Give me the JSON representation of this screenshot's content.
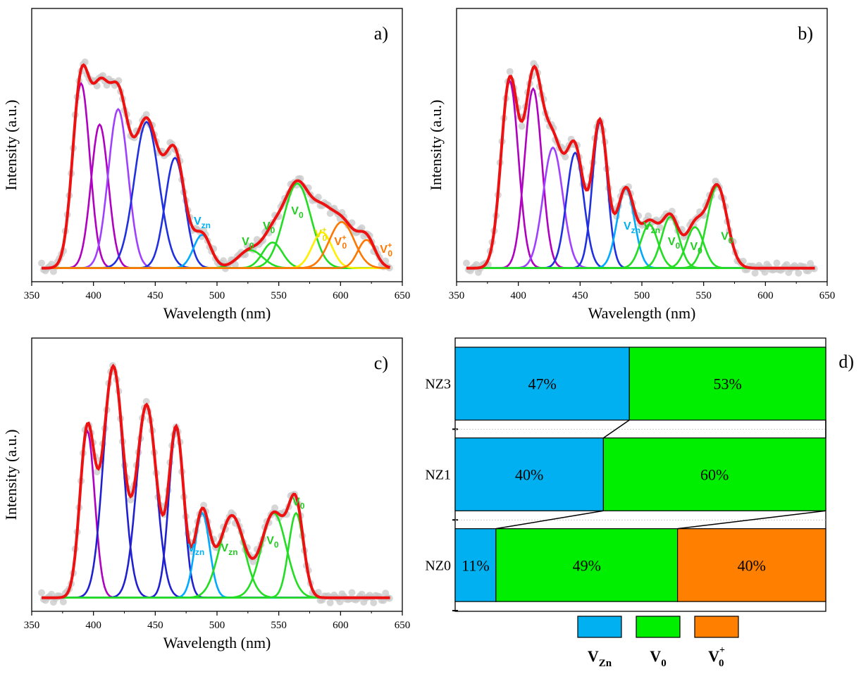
{
  "chart_data": [
    {
      "type": "line",
      "panel": "a)",
      "xlabel": "Wavelength (nm)",
      "ylabel": "Intensity (a.u.)",
      "xlim": [
        350,
        650
      ],
      "xticks": [
        350,
        400,
        450,
        500,
        550,
        600,
        650
      ],
      "ymax": 1.0,
      "baseline": 0.02,
      "components": [
        {
          "center": 390,
          "amp": 0.72,
          "sigma": 7,
          "color": "#b000c0"
        },
        {
          "center": 405,
          "amp": 0.56,
          "sigma": 7,
          "color": "#b000c0"
        },
        {
          "center": 420,
          "amp": 0.62,
          "sigma": 8,
          "color": "#a040ff"
        },
        {
          "center": 443,
          "amp": 0.57,
          "sigma": 10,
          "color": "#2030e0"
        },
        {
          "center": 466,
          "amp": 0.43,
          "sigma": 8,
          "color": "#2030e0"
        },
        {
          "center": 488,
          "amp": 0.13,
          "sigma": 7,
          "color": "#00aaff"
        },
        {
          "center": 527,
          "amp": 0.07,
          "sigma": 10,
          "color": "#22dd22"
        },
        {
          "center": 545,
          "amp": 0.1,
          "sigma": 8,
          "color": "#22dd22"
        },
        {
          "center": 565,
          "amp": 0.33,
          "sigma": 11,
          "color": "#22dd22"
        },
        {
          "center": 585,
          "amp": 0.14,
          "sigma": 8,
          "color": "#ffee00"
        },
        {
          "center": 601,
          "amp": 0.18,
          "sigma": 10,
          "color": "#ff7700"
        },
        {
          "center": 621,
          "amp": 0.11,
          "sigma": 7,
          "color": "#ff7700"
        }
      ],
      "annotations": [
        {
          "text": "V",
          "sub": "zn",
          "sup": "",
          "x": 488,
          "y": 0.19,
          "color": "#00b0f0"
        },
        {
          "text": "V",
          "sub": "0",
          "sup": "",
          "x": 525,
          "y": 0.11,
          "color": "#22cc22"
        },
        {
          "text": "V",
          "sub": "0",
          "sup": "",
          "x": 542,
          "y": 0.17,
          "color": "#22cc22"
        },
        {
          "text": "V",
          "sub": "0",
          "sup": "",
          "x": 565,
          "y": 0.23,
          "color": "#22cc22"
        },
        {
          "text": "V",
          "sub": "0",
          "sup": "+",
          "x": 584,
          "y": 0.14,
          "color": "#e8e000"
        },
        {
          "text": "V",
          "sub": "0",
          "sup": "+",
          "x": 600,
          "y": 0.11,
          "color": "#ff7700"
        },
        {
          "text": "V",
          "sub": "0",
          "sup": "+",
          "x": 637,
          "y": 0.08,
          "color": "#ff7700"
        }
      ]
    },
    {
      "type": "line",
      "panel": "b)",
      "xlabel": "Wavelength (nm)",
      "ylabel": "Intensity (a.u.)",
      "xlim": [
        350,
        650
      ],
      "xticks": [
        350,
        400,
        450,
        500,
        550,
        600,
        650
      ],
      "ymax": 1.0,
      "baseline": 0.02,
      "components": [
        {
          "center": 393,
          "amp": 0.73,
          "sigma": 7,
          "color": "#b000c0"
        },
        {
          "center": 412,
          "amp": 0.7,
          "sigma": 7,
          "color": "#b000c0"
        },
        {
          "center": 428,
          "amp": 0.47,
          "sigma": 8,
          "color": "#a040ff"
        },
        {
          "center": 446,
          "amp": 0.45,
          "sigma": 7,
          "color": "#2030e0"
        },
        {
          "center": 466,
          "amp": 0.57,
          "sigma": 6,
          "color": "#2030e0"
        },
        {
          "center": 487,
          "amp": 0.31,
          "sigma": 7,
          "color": "#00aaff"
        },
        {
          "center": 506,
          "amp": 0.17,
          "sigma": 7,
          "color": "#22dd22"
        },
        {
          "center": 523,
          "amp": 0.2,
          "sigma": 7,
          "color": "#22dd22"
        },
        {
          "center": 543,
          "amp": 0.16,
          "sigma": 7,
          "color": "#22dd22"
        },
        {
          "center": 561,
          "amp": 0.32,
          "sigma": 8,
          "color": "#22dd22"
        }
      ],
      "annotations": [
        {
          "text": "V",
          "sub": "zn",
          "sup": "",
          "x": 492,
          "y": 0.17,
          "color": "#00b0f0"
        },
        {
          "text": "V",
          "sub": "zn",
          "sup": "",
          "x": 508,
          "y": 0.17,
          "color": "#22cc22"
        },
        {
          "text": "V",
          "sub": "0",
          "sup": "",
          "x": 526,
          "y": 0.11,
          "color": "#22cc22"
        },
        {
          "text": "V",
          "sub": "0",
          "sup": "",
          "x": 544,
          "y": 0.09,
          "color": "#22cc22"
        },
        {
          "text": "V",
          "sub": "0",
          "sup": "",
          "x": 569,
          "y": 0.13,
          "color": "#22cc22"
        }
      ]
    },
    {
      "type": "line",
      "panel": "c)",
      "xlabel": "Wavelength (nm)",
      "ylabel": "Intensity (a.u.)",
      "xlim": [
        350,
        650
      ],
      "xticks": [
        350,
        400,
        450,
        500,
        550,
        600,
        650
      ],
      "ymax": 1.0,
      "baseline": 0.02,
      "components": [
        {
          "center": 395,
          "amp": 0.65,
          "sigma": 6,
          "color": "#b000c0"
        },
        {
          "center": 416,
          "amp": 0.9,
          "sigma": 8,
          "color": "#2020d0"
        },
        {
          "center": 443,
          "amp": 0.75,
          "sigma": 8,
          "color": "#2020d0"
        },
        {
          "center": 467,
          "amp": 0.66,
          "sigma": 6,
          "color": "#2020d0"
        },
        {
          "center": 488,
          "amp": 0.33,
          "sigma": 6,
          "color": "#00aaff"
        },
        {
          "center": 512,
          "amp": 0.32,
          "sigma": 10,
          "color": "#22dd22"
        },
        {
          "center": 546,
          "amp": 0.33,
          "sigma": 10,
          "color": "#22dd22"
        },
        {
          "center": 564,
          "amp": 0.33,
          "sigma": 6,
          "color": "#22dd22"
        }
      ],
      "annotations": [
        {
          "text": "V",
          "sub": "zn",
          "sup": "",
          "x": 483,
          "y": 0.2,
          "color": "#00b0f0"
        },
        {
          "text": "V",
          "sub": "zn",
          "sup": "",
          "x": 510,
          "y": 0.2,
          "color": "#22cc22"
        },
        {
          "text": "V",
          "sub": "0",
          "sup": "",
          "x": 545,
          "y": 0.23,
          "color": "#22cc22"
        },
        {
          "text": "V",
          "sub": "0",
          "sup": "",
          "x": 566,
          "y": 0.38,
          "color": "#22cc22"
        }
      ]
    },
    {
      "type": "bar",
      "panel": "d)",
      "orientation": "horizontal",
      "stacked": true,
      "normalized": true,
      "categories": [
        "NZ3",
        "NZ1",
        "NZ0"
      ],
      "series": [
        {
          "name": "V",
          "sub": "Zn",
          "sup": "",
          "color": "#00b0f0",
          "values": [
            47,
            40,
            11
          ],
          "labels": [
            "47%",
            "40%",
            "11%"
          ]
        },
        {
          "name": "V",
          "sub": "0",
          "sup": "",
          "color": "#00ee00",
          "values": [
            53,
            60,
            49
          ],
          "labels": [
            "53%",
            "60%",
            "49%"
          ]
        },
        {
          "name": "V",
          "sub": "0",
          "sup": "+",
          "color": "#ff8000",
          "values": [
            0,
            0,
            40
          ],
          "labels": [
            "",
            "",
            "40%"
          ]
        }
      ]
    }
  ]
}
